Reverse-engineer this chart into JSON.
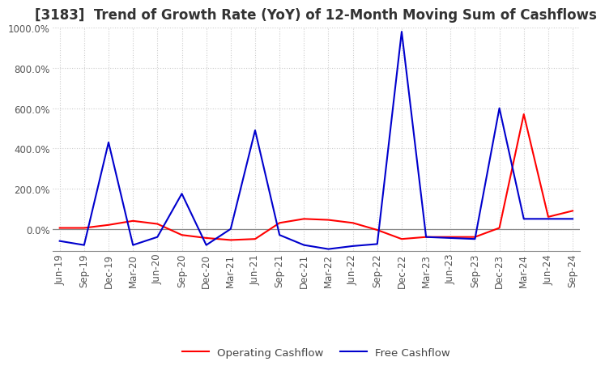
{
  "title": "[3183]  Trend of Growth Rate (YoY) of 12-Month Moving Sum of Cashflows",
  "x_labels": [
    "Jun-19",
    "Sep-19",
    "Dec-19",
    "Mar-20",
    "Jun-20",
    "Sep-20",
    "Dec-20",
    "Mar-21",
    "Jun-21",
    "Sep-21",
    "Dec-21",
    "Mar-22",
    "Jun-22",
    "Sep-22",
    "Dec-22",
    "Mar-23",
    "Jun-23",
    "Sep-23",
    "Dec-23",
    "Mar-24",
    "Jun-24",
    "Sep-24"
  ],
  "operating_cashflow": [
    5.0,
    5.0,
    20.0,
    40.0,
    25.0,
    -30.0,
    -45.0,
    -55.0,
    -50.0,
    30.0,
    50.0,
    45.0,
    30.0,
    -5.0,
    -50.0,
    -40.0,
    -40.0,
    -40.0,
    5.0,
    570.0,
    60.0,
    90.0
  ],
  "free_cashflow": [
    -60.0,
    -80.0,
    430.0,
    -80.0,
    -40.0,
    175.0,
    -80.0,
    0.0,
    490.0,
    -30.0,
    -80.0,
    -100.0,
    -85.0,
    -75.0,
    980.0,
    -40.0,
    -45.0,
    -50.0,
    600.0,
    50.0,
    50.0,
    50.0
  ],
  "operating_color": "#ff0000",
  "free_color": "#0000cd",
  "ylim_min": -110,
  "ylim_max": 1000,
  "yticks": [
    0.0,
    200.0,
    400.0,
    600.0,
    800.0,
    1000.0
  ],
  "ytick_labels": [
    "0.0%",
    "200.0%",
    "400.0%",
    "600.0%",
    "800.0%",
    "1000.0%"
  ],
  "legend_op": "Operating Cashflow",
  "legend_free": "Free Cashflow",
  "grid_color": "#cccccc",
  "background_color": "#ffffff",
  "title_fontsize": 12,
  "tick_fontsize": 8.5
}
